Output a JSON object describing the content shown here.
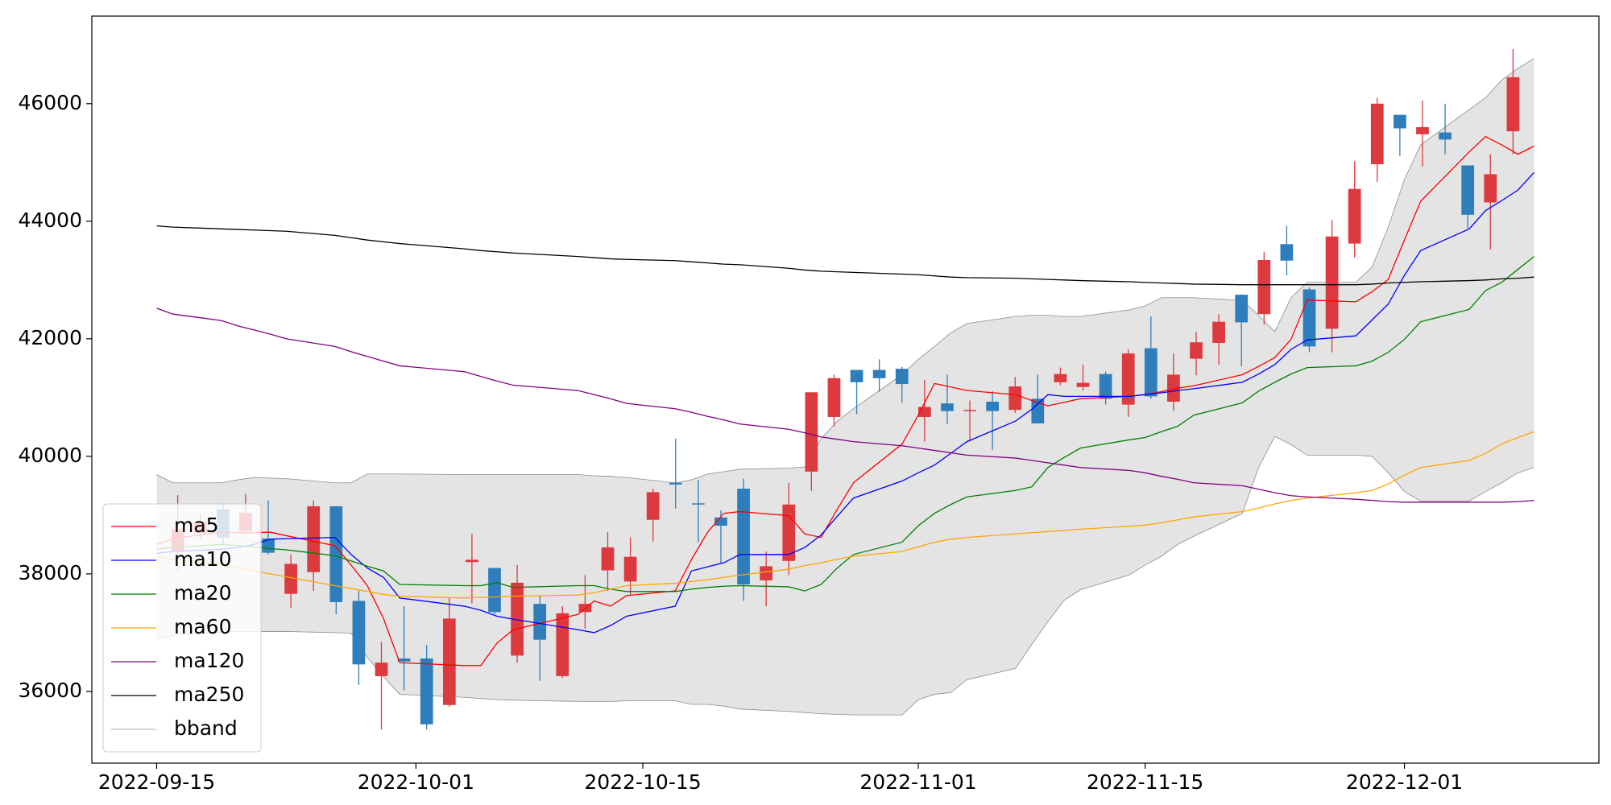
{
  "chart_data": {
    "type": "candlestick",
    "x": [
      "2022-09-15",
      "2022-09-16",
      "2022-09-19",
      "2022-09-20",
      "2022-09-21",
      "2022-09-22",
      "2022-09-23",
      "2022-09-26",
      "2022-09-27",
      "2022-09-28",
      "2022-09-29",
      "2022-09-30",
      "2022-10-04",
      "2022-10-05",
      "2022-10-06",
      "2022-10-07",
      "2022-10-11",
      "2022-10-12",
      "2022-10-13",
      "2022-10-14",
      "2022-10-17",
      "2022-10-18",
      "2022-10-19",
      "2022-10-20",
      "2022-10-21",
      "2022-10-24",
      "2022-10-25",
      "2022-10-26",
      "2022-10-27",
      "2022-10-28",
      "2022-10-31",
      "2022-11-01",
      "2022-11-02",
      "2022-11-03",
      "2022-11-04",
      "2022-11-07",
      "2022-11-08",
      "2022-11-09",
      "2022-11-10",
      "2022-11-11",
      "2022-11-14",
      "2022-11-15",
      "2022-11-16",
      "2022-11-17",
      "2022-11-18",
      "2022-11-21",
      "2022-11-22",
      "2022-11-23",
      "2022-11-24",
      "2022-11-25",
      "2022-11-28",
      "2022-11-29",
      "2022-11-30",
      "2022-12-01",
      "2022-12-02",
      "2022-12-05",
      "2022-12-06",
      "2022-12-07",
      "2022-12-08",
      "2022-12-09"
    ],
    "open": [
      38380,
      38690,
      39100,
      38730,
      38600,
      37660,
      38030,
      39150,
      37540,
      36260,
      36560,
      36560,
      35770,
      38200,
      38100,
      36610,
      37490,
      36260,
      37350,
      38060,
      37870,
      38920,
      39550,
      39200,
      38960,
      39450,
      37890,
      38220,
      39740,
      40670,
      41470,
      41470,
      41490,
      40670,
      40900,
      40770,
      40930,
      40790,
      40980,
      41260,
      41180,
      41400,
      40880,
      41840,
      40930,
      41660,
      41930,
      42750,
      42420,
      43610,
      42840,
      42170,
      43620,
      44970,
      45810,
      45480,
      45510,
      44950,
      44320,
      45530
    ],
    "high": [
      39340,
      39030,
      39200,
      39360,
      39250,
      38330,
      39250,
      39150,
      37710,
      36840,
      37450,
      36790,
      37590,
      38680,
      38100,
      38150,
      37630,
      37450,
      37980,
      38710,
      38620,
      39450,
      40300,
      39600,
      39080,
      39620,
      38380,
      39550,
      41090,
      41390,
      41470,
      41650,
      41520,
      41300,
      41390,
      40950,
      41110,
      41350,
      41390,
      41510,
      41560,
      41440,
      41820,
      42380,
      41750,
      42120,
      42420,
      42750,
      43480,
      43920,
      42870,
      44020,
      45020,
      46100,
      45810,
      46050,
      46000,
      44950,
      45140,
      46930
    ],
    "low": [
      38050,
      38590,
      38500,
      38680,
      38330,
      37420,
      37710,
      37310,
      36110,
      35350,
      36020,
      35350,
      35740,
      37500,
      37310,
      36490,
      36180,
      36230,
      37070,
      37710,
      37630,
      38550,
      39110,
      38540,
      38190,
      37540,
      37450,
      37980,
      39410,
      40510,
      40720,
      41100,
      40910,
      40250,
      40550,
      40250,
      40110,
      40740,
      40560,
      41210,
      41120,
      40880,
      40670,
      40980,
      40770,
      41380,
      41560,
      41530,
      42240,
      43080,
      41770,
      41770,
      43380,
      44670,
      45110,
      44930,
      45140,
      43880,
      43520,
      45140
    ],
    "close": [
      38760,
      38890,
      38620,
      39040,
      38360,
      38170,
      39150,
      37520,
      36460,
      36490,
      36510,
      35440,
      37240,
      38240,
      37350,
      37850,
      36880,
      37330,
      37490,
      38450,
      38290,
      39390,
      39520,
      39180,
      38820,
      37820,
      38130,
      39180,
      41090,
      41330,
      41260,
      41330,
      41230,
      40840,
      40770,
      40790,
      40770,
      41190,
      40560,
      41400,
      41250,
      40980,
      41750,
      41020,
      41390,
      41940,
      42290,
      42280,
      43340,
      43330,
      41870,
      43740,
      44550,
      46000,
      45580,
      45600,
      45390,
      44110,
      44800,
      46450
    ],
    "up_color": "#dc3a3e",
    "down_color": "#2e7ebc",
    "series": [
      {
        "name": "ma5",
        "color": "#ff0000",
        "values": [
          38500,
          38600,
          38710,
          38700,
          38700,
          38710,
          38650,
          38480,
          38150,
          37800,
          37240,
          36490,
          36440,
          36440,
          36820,
          37050,
          37310,
          37540,
          37450,
          37630,
          37710,
          38240,
          38710,
          39030,
          39060,
          38990,
          38680,
          38620,
          39100,
          39550,
          40210,
          40700,
          41240,
          41180,
          41120,
          41050,
          40950,
          40860,
          40920,
          40980,
          41020,
          41050,
          41100,
          41160,
          41200,
          41390,
          41530,
          41680,
          41990,
          42660,
          42630,
          42800,
          43010,
          43680,
          44340,
          45180,
          45440,
          45300,
          45140,
          45280
        ]
      },
      {
        "name": "ma10",
        "color": "#0000ff",
        "values": [
          38350,
          38380,
          38420,
          38450,
          38500,
          38590,
          38600,
          38620,
          38330,
          38100,
          37940,
          37590,
          37450,
          37380,
          37280,
          37230,
          37050,
          37000,
          37120,
          37280,
          37450,
          38050,
          38120,
          38190,
          38330,
          38330,
          38450,
          38660,
          38980,
          39290,
          39580,
          39720,
          39850,
          40050,
          40250,
          40600,
          40800,
          41050,
          41020,
          41020,
          41020,
          41050,
          41080,
          41120,
          41150,
          41260,
          41400,
          41560,
          41820,
          41980,
          42050,
          42320,
          42590,
          43080,
          43500,
          43870,
          44180,
          44350,
          44530,
          44830
        ]
      },
      {
        "name": "ma20",
        "color": "#008000",
        "values": [
          38420,
          38450,
          38500,
          38480,
          38460,
          38430,
          38410,
          38310,
          38220,
          38130,
          38050,
          37820,
          37800,
          37800,
          37850,
          37770,
          37800,
          37800,
          37740,
          37700,
          37700,
          37740,
          37770,
          37790,
          37800,
          37780,
          37710,
          37820,
          38100,
          38330,
          38540,
          38820,
          39030,
          39180,
          39310,
          39420,
          39480,
          39810,
          39980,
          40140,
          40280,
          40320,
          40420,
          40510,
          40700,
          40910,
          41110,
          41260,
          41400,
          41510,
          41540,
          41620,
          41770,
          41990,
          42290,
          42500,
          42820,
          42960,
          43180,
          43400
        ]
      },
      {
        "name": "ma60",
        "color": "#ffa500",
        "values": [
          38290,
          38250,
          38150,
          38100,
          38050,
          38000,
          37950,
          37800,
          37750,
          37700,
          37650,
          37620,
          37590,
          37600,
          37610,
          37620,
          37640,
          37680,
          37740,
          37800,
          37840,
          37870,
          37900,
          37940,
          37980,
          38080,
          38140,
          38190,
          38250,
          38300,
          38380,
          38460,
          38540,
          38590,
          38620,
          38680,
          38700,
          38720,
          38740,
          38760,
          38810,
          38830,
          38870,
          38920,
          38970,
          39060,
          39120,
          39190,
          39250,
          39290,
          39380,
          39420,
          39530,
          39680,
          39810,
          39930,
          40050,
          40210,
          40320,
          40420
        ]
      },
      {
        "name": "ma120",
        "color": "#800080",
        "values": [
          42520,
          42420,
          42310,
          42220,
          42150,
          42080,
          42000,
          41870,
          41780,
          41700,
          41620,
          41540,
          41440,
          41360,
          41280,
          41210,
          41120,
          41050,
          40980,
          40900,
          40810,
          40750,
          40680,
          40620,
          40550,
          40460,
          40400,
          40330,
          40290,
          40250,
          40180,
          40140,
          40100,
          40060,
          40020,
          39970,
          39930,
          39890,
          39850,
          39810,
          39760,
          39720,
          39660,
          39610,
          39550,
          39500,
          39440,
          39380,
          39330,
          39310,
          39270,
          39250,
          39230,
          39220,
          39220,
          39220,
          39220,
          39220,
          39230,
          39250
        ]
      },
      {
        "name": "ma250",
        "color": "#000000",
        "values": [
          43920,
          43900,
          43870,
          43860,
          43850,
          43840,
          43830,
          43760,
          43720,
          43680,
          43650,
          43620,
          43530,
          43500,
          43480,
          43460,
          43400,
          43380,
          43360,
          43350,
          43330,
          43310,
          43290,
          43270,
          43260,
          43200,
          43170,
          43150,
          43140,
          43130,
          43100,
          43090,
          43070,
          43050,
          43040,
          43030,
          43020,
          43010,
          43000,
          42990,
          42970,
          42960,
          42950,
          42940,
          42930,
          42920,
          42920,
          42920,
          42920,
          42920,
          42920,
          42930,
          42950,
          42960,
          42970,
          42990,
          43000,
          43020,
          43030,
          43050
        ]
      }
    ],
    "band": {
      "name": "bband",
      "color": "#8c8c8c",
      "fill": "#e4e4e4",
      "upper": [
        39690,
        39550,
        39550,
        39600,
        39640,
        39630,
        39620,
        39550,
        39550,
        39700,
        39700,
        39700,
        39690,
        39690,
        39690,
        39690,
        39690,
        39670,
        39660,
        39640,
        39550,
        39600,
        39700,
        39740,
        39780,
        39800,
        39820,
        40300,
        40600,
        40810,
        41390,
        41650,
        41870,
        42100,
        42260,
        42380,
        42400,
        42400,
        42380,
        42380,
        42490,
        42560,
        42700,
        42700,
        42700,
        42650,
        42400,
        42120,
        42700,
        42960,
        42960,
        43220,
        43900,
        44710,
        45300,
        45900,
        46100,
        46400,
        46600,
        46770
      ],
      "lower": [
        36890,
        36950,
        37010,
        37020,
        37020,
        37020,
        37020,
        37000,
        36990,
        36580,
        36250,
        35950,
        35900,
        35880,
        35860,
        35850,
        35830,
        35830,
        35830,
        35840,
        35840,
        35780,
        35780,
        35750,
        35700,
        35660,
        35640,
        35620,
        35610,
        35600,
        35600,
        35860,
        35950,
        35980,
        36200,
        36390,
        36800,
        37190,
        37550,
        37730,
        37980,
        38150,
        38300,
        38500,
        38640,
        39030,
        39810,
        40340,
        40200,
        40020,
        40020,
        40000,
        39720,
        39400,
        39240,
        39240,
        39400,
        39550,
        39720,
        39810
      ]
    },
    "xlim": [
      "2022-09-11",
      "2022-12-13"
    ],
    "xticks": [
      "2022-09-15",
      "2022-10-01",
      "2022-10-15",
      "2022-11-01",
      "2022-11-15",
      "2022-12-01"
    ],
    "ylim": [
      34780,
      47490
    ],
    "yticks": [
      36000,
      38000,
      40000,
      42000,
      44000,
      46000
    ],
    "legend": "lower left"
  }
}
